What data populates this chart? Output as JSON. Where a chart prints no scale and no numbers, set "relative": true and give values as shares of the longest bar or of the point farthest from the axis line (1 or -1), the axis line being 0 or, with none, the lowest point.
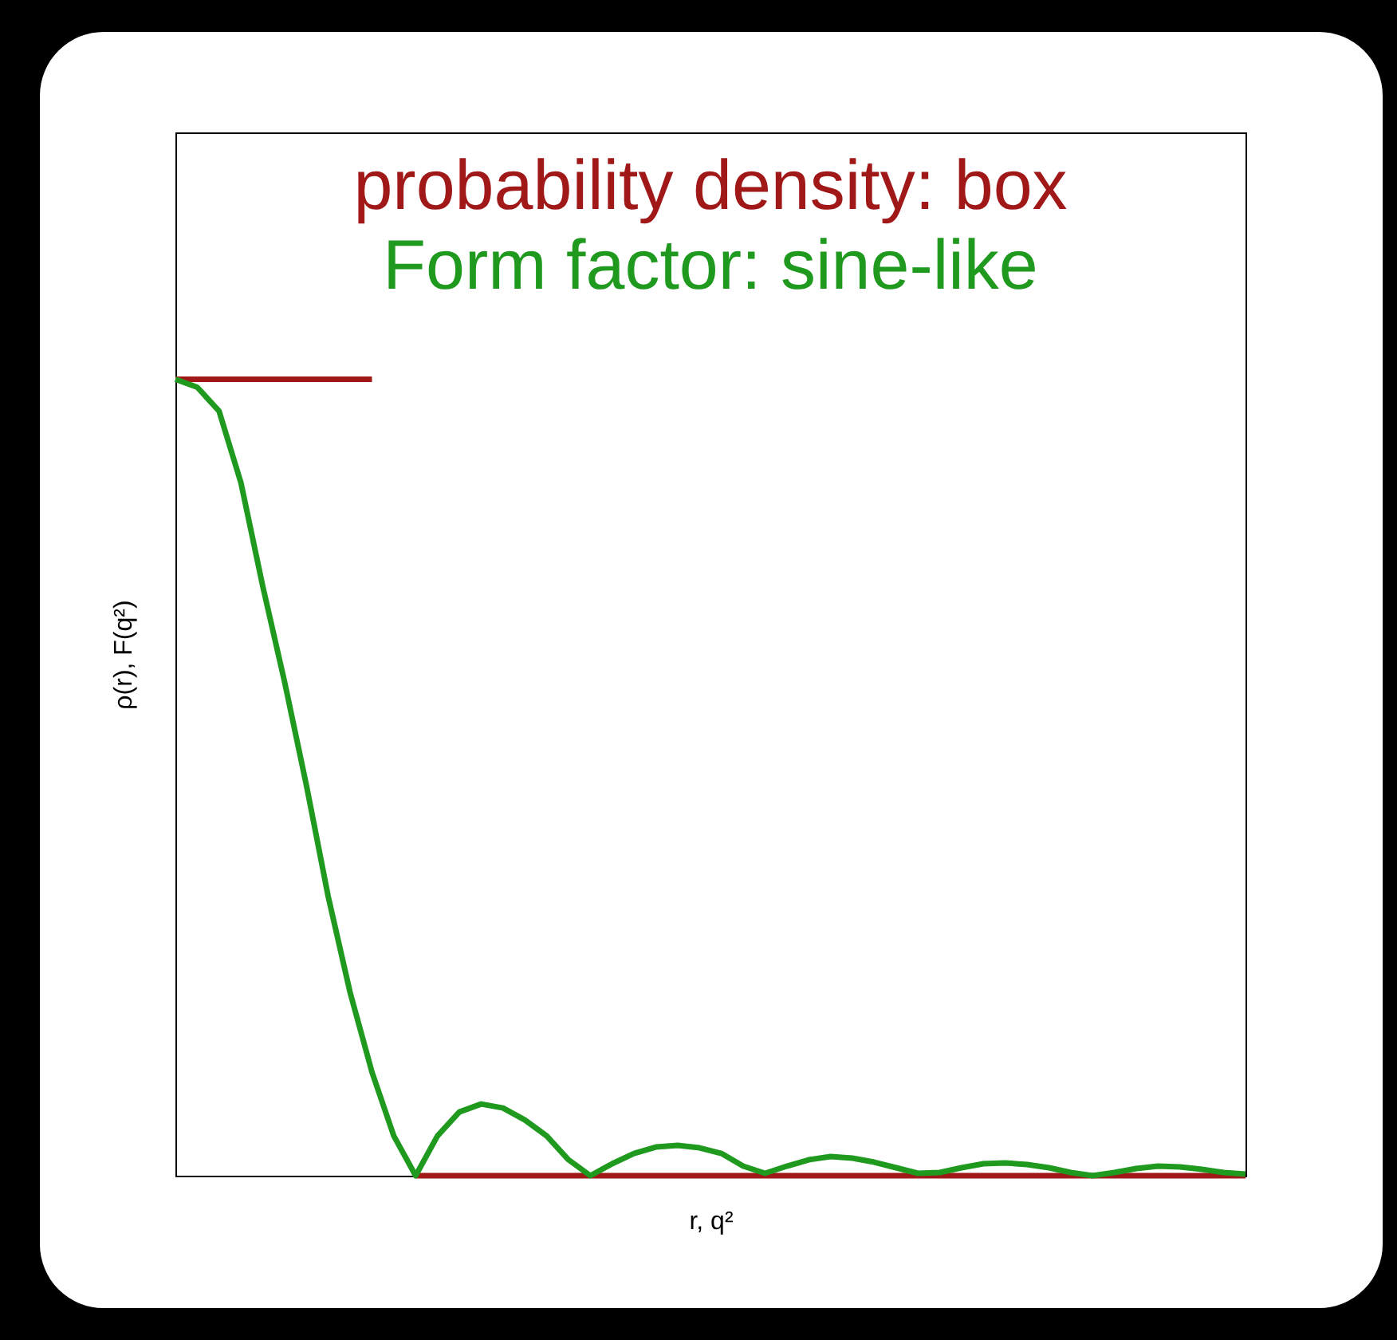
{
  "chart_data": {
    "type": "line",
    "relative": true,
    "xlabel": "r, q²",
    "ylabel": "ρ(r), F(q²)",
    "categories": [
      null,
      null,
      null,
      null,
      null,
      null,
      null,
      null,
      null,
      null,
      null,
      null,
      null,
      null,
      null,
      null,
      null,
      null,
      null,
      null,
      null,
      null,
      null,
      null,
      null,
      null,
      null,
      null,
      null,
      null,
      null,
      null,
      null,
      null,
      null,
      null,
      null,
      null,
      null,
      null,
      null,
      null,
      null,
      null,
      null,
      null,
      null,
      null,
      null,
      null
    ],
    "series": [
      {
        "name": "probability density: box",
        "color": "#a01818",
        "values": [
          1,
          1,
          1,
          1,
          1,
          1,
          1,
          1,
          1,
          1,
          null,
          0,
          0,
          0,
          0,
          0,
          0,
          0,
          0,
          0,
          0,
          0,
          0,
          0,
          0,
          0,
          0,
          0,
          0,
          0,
          0,
          0,
          0,
          0,
          0,
          0,
          0,
          0,
          0,
          0,
          0,
          0,
          0,
          0,
          0,
          0,
          0,
          0,
          0,
          0
        ]
      },
      {
        "name": "Form factor: sine-like",
        "color": "#1f9a1f",
        "values": [
          1,
          0.99,
          0.96,
          0.87,
          0.74,
          0.62,
          0.49,
          0.35,
          0.23,
          0.13,
          0.05,
          0,
          0.05,
          0.08,
          0.09,
          0.085,
          0.07,
          0.05,
          0.02,
          0,
          0.015,
          0.028,
          0.036,
          0.038,
          0.035,
          0.028,
          0.012,
          0.003,
          0.012,
          0.02,
          0.024,
          0.022,
          0.017,
          0.01,
          0.003,
          0.004,
          0.01,
          0.015,
          0.016,
          0.014,
          0.01,
          0.004,
          0,
          0.004,
          0.009,
          0.012,
          0.011,
          0.008,
          0.004,
          0.002
        ]
      }
    ]
  }
}
